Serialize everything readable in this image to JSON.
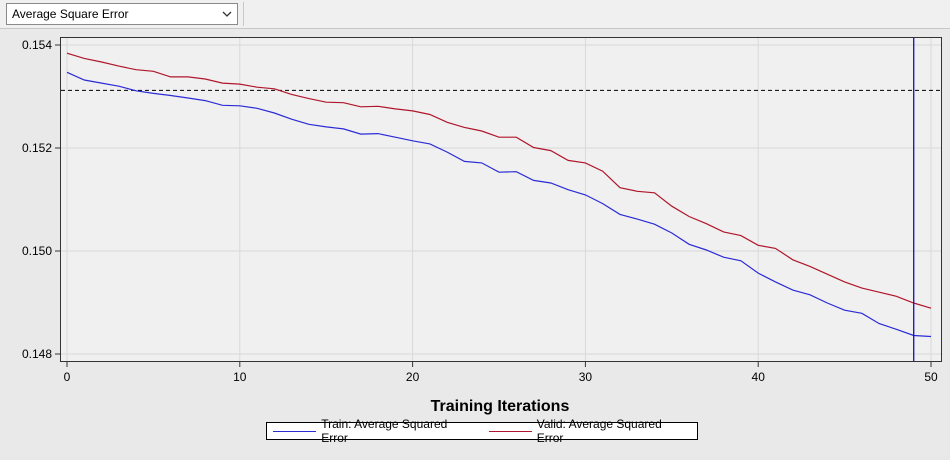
{
  "toolbar": {
    "selector_value": "Average Square Error"
  },
  "colors": {
    "train": "#2b2bd6",
    "valid": "#b0162b",
    "reference_line": "#000000",
    "marker_line": "#1010b8",
    "plot_background": "#f0f0f0",
    "grid": "#d9d9d9"
  },
  "icons": {
    "dropdown": "chevron-down-icon"
  },
  "chart_data": {
    "type": "line",
    "title": "",
    "xlabel": "Training Iterations",
    "ylabel": "",
    "xlim": [
      0,
      50
    ],
    "ylim": [
      0.1479,
      0.1542
    ],
    "xticks": [
      "0",
      "10",
      "20",
      "30",
      "40",
      "50"
    ],
    "yticks": [
      "0.148",
      "0.150",
      "0.152",
      "0.154"
    ],
    "grid": true,
    "legend_position": "bottom-center",
    "x": [
      0,
      1,
      2,
      3,
      4,
      5,
      6,
      7,
      8,
      9,
      10,
      11,
      12,
      13,
      14,
      15,
      16,
      17,
      18,
      19,
      20,
      21,
      22,
      23,
      24,
      25,
      26,
      27,
      28,
      29,
      30,
      31,
      32,
      33,
      34,
      35,
      36,
      37,
      38,
      39,
      40,
      41,
      42,
      43,
      44,
      45,
      46,
      47,
      48,
      49,
      50
    ],
    "series": [
      {
        "name": "Train: Average Squared Error",
        "values": [
          0.15347,
          0.15332,
          0.15326,
          0.1532,
          0.15311,
          0.15306,
          0.15302,
          0.15297,
          0.15292,
          0.15283,
          0.15282,
          0.15277,
          0.15268,
          0.15256,
          0.15246,
          0.15241,
          0.15237,
          0.15227,
          0.15228,
          0.15221,
          0.15214,
          0.15208,
          0.15192,
          0.15174,
          0.15171,
          0.15153,
          0.15154,
          0.15137,
          0.15132,
          0.15119,
          0.15109,
          0.15092,
          0.15071,
          0.15062,
          0.15052,
          0.15035,
          0.15013,
          0.15002,
          0.14988,
          0.14981,
          0.14957,
          0.1494,
          0.14924,
          0.14915,
          0.14899,
          0.14885,
          0.14879,
          0.14859,
          0.14848,
          0.14836,
          0.14834
        ]
      },
      {
        "name": "Valid: Average Squared Error",
        "values": [
          0.15384,
          0.15374,
          0.15367,
          0.15359,
          0.15352,
          0.15349,
          0.15338,
          0.15338,
          0.15334,
          0.15326,
          0.15324,
          0.15318,
          0.15315,
          0.15304,
          0.15296,
          0.15289,
          0.15288,
          0.1528,
          0.15281,
          0.15276,
          0.15272,
          0.15265,
          0.1525,
          0.1524,
          0.15233,
          0.15221,
          0.15221,
          0.15201,
          0.15195,
          0.15176,
          0.15171,
          0.15155,
          0.15123,
          0.15116,
          0.15113,
          0.15087,
          0.15067,
          0.15053,
          0.15037,
          0.1503,
          0.15011,
          0.15005,
          0.14983,
          0.1497,
          0.14955,
          0.1494,
          0.14928,
          0.1492,
          0.14912,
          0.14899,
          0.14889
        ]
      }
    ],
    "reference_y": 0.15312,
    "marker_x": 49
  }
}
